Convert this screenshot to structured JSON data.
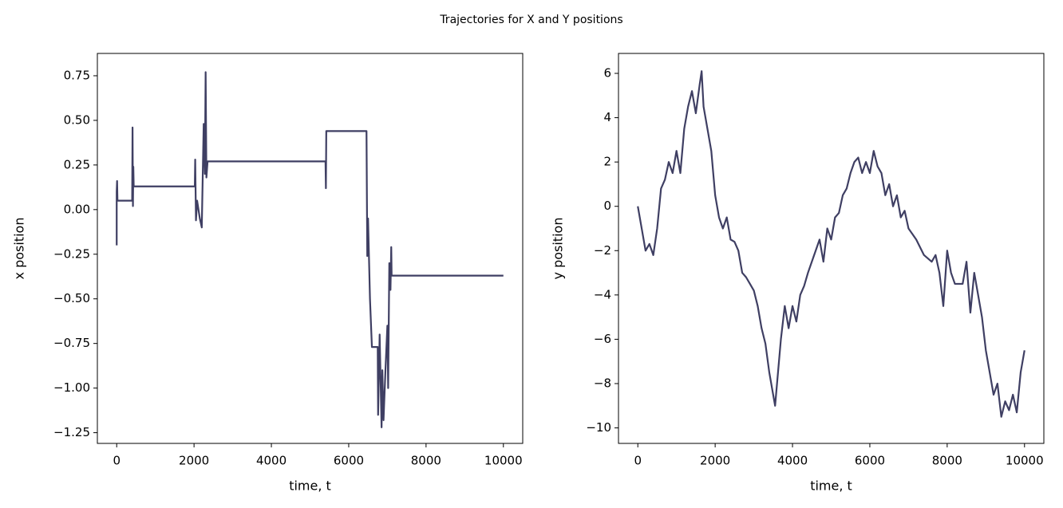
{
  "title": "Trajectories for X and Y positions",
  "chart_data": [
    {
      "type": "line",
      "xlabel": "time, t",
      "ylabel": "x position",
      "color": "#3f3f63",
      "x": [
        0,
        0,
        10,
        20,
        400,
        410,
        420,
        430,
        440,
        2020,
        2030,
        2050,
        2080,
        2150,
        2200,
        2250,
        2280,
        2300,
        2320,
        2350,
        5400,
        5410,
        5420,
        6460,
        6480,
        6500,
        6550,
        6600,
        6750,
        6760,
        6800,
        6850,
        6870,
        6900,
        6950,
        7000,
        7020,
        7050,
        7080,
        7100,
        7110,
        10000
      ],
      "values": [
        -0.2,
        0.1,
        0.16,
        0.05,
        0.05,
        0.46,
        0.02,
        0.24,
        0.13,
        0.13,
        0.28,
        -0.06,
        0.05,
        -0.05,
        -0.1,
        0.48,
        0.2,
        0.77,
        0.18,
        0.27,
        0.27,
        0.12,
        0.44,
        0.44,
        -0.26,
        -0.05,
        -0.5,
        -0.77,
        -0.77,
        -1.15,
        -0.7,
        -1.22,
        -0.9,
        -1.18,
        -0.9,
        -0.65,
        -1.0,
        -0.3,
        -0.45,
        -0.21,
        -0.37,
        -0.37
      ],
      "xlim": [
        -500,
        10500
      ],
      "xticks": [
        0,
        2000,
        4000,
        6000,
        8000,
        10000
      ],
      "ylim": [
        -1.31,
        0.875
      ],
      "yticks": [
        {
          "value": -1.25,
          "label": "−1.25"
        },
        {
          "value": -1,
          "label": "−1.00"
        },
        {
          "value": -0.75,
          "label": "−0.75"
        },
        {
          "value": -0.5,
          "label": "−0.50"
        },
        {
          "value": -0.25,
          "label": "−0.25"
        },
        {
          "value": 0,
          "label": "0.00"
        },
        0.25,
        {
          "value": 0.5,
          "label": "0.50"
        },
        0.75
      ]
    },
    {
      "type": "line",
      "xlabel": "time, t",
      "ylabel": "y position",
      "color": "#3f3f63",
      "x": [
        0,
        100,
        200,
        300,
        400,
        500,
        600,
        700,
        800,
        900,
        1000,
        1100,
        1200,
        1300,
        1400,
        1500,
        1600,
        1650,
        1700,
        1800,
        1900,
        2000,
        2100,
        2200,
        2300,
        2400,
        2500,
        2600,
        2700,
        2800,
        2900,
        3000,
        3100,
        3200,
        3300,
        3400,
        3500,
        3550,
        3600,
        3700,
        3800,
        3900,
        4000,
        4100,
        4200,
        4300,
        4400,
        4500,
        4600,
        4700,
        4800,
        4900,
        5000,
        5100,
        5200,
        5300,
        5400,
        5500,
        5600,
        5700,
        5800,
        5900,
        6000,
        6100,
        6200,
        6300,
        6400,
        6500,
        6600,
        6700,
        6800,
        6900,
        7000,
        7200,
        7400,
        7600,
        7700,
        7800,
        7900,
        8000,
        8100,
        8200,
        8400,
        8500,
        8600,
        8700,
        8800,
        8900,
        9000,
        9100,
        9200,
        9300,
        9400,
        9500,
        9600,
        9700,
        9800,
        9900,
        10000
      ],
      "values": [
        0,
        -1,
        -2,
        -1.7,
        -2.2,
        -1,
        0.8,
        1.2,
        2,
        1.5,
        2.5,
        1.5,
        3.5,
        4.5,
        5.2,
        4.2,
        5.5,
        6.1,
        4.5,
        3.5,
        2.5,
        0.5,
        -0.5,
        -1,
        -0.5,
        -1.5,
        -1.6,
        -2,
        -3,
        -3.2,
        -3.5,
        -3.8,
        -4.5,
        -5.5,
        -6.2,
        -7.5,
        -8.5,
        -9,
        -8,
        -6,
        -4.5,
        -5.5,
        -4.5,
        -5.2,
        -4,
        -3.6,
        -3,
        -2.5,
        -2,
        -1.5,
        -2.5,
        -1,
        -1.5,
        -0.5,
        -0.3,
        0.5,
        0.8,
        1.5,
        2,
        2.2,
        1.5,
        2,
        1.5,
        2.5,
        1.8,
        1.5,
        0.5,
        1,
        0,
        0.5,
        -0.5,
        -0.2,
        -1,
        -1.5,
        -2.2,
        -2.5,
        -2.2,
        -3,
        -4.5,
        -2,
        -3,
        -3.5,
        -3.5,
        -2.5,
        -4.8,
        -3,
        -4,
        -5,
        -6.5,
        -7.5,
        -8.5,
        -8,
        -9.5,
        -8.8,
        -9.2,
        -8.5,
        -9.3,
        -7.5,
        -6.5
      ],
      "xlim": [
        -500,
        10500
      ],
      "xticks": [
        0,
        2000,
        4000,
        6000,
        8000,
        10000
      ],
      "ylim": [
        -10.7,
        6.9
      ],
      "yticks": [
        {
          "value": -10,
          "label": "−10"
        },
        {
          "value": -8,
          "label": "−8"
        },
        {
          "value": -6,
          "label": "−6"
        },
        {
          "value": -4,
          "label": "−4"
        },
        {
          "value": -2,
          "label": "−2"
        },
        0,
        2,
        4,
        6
      ]
    }
  ]
}
